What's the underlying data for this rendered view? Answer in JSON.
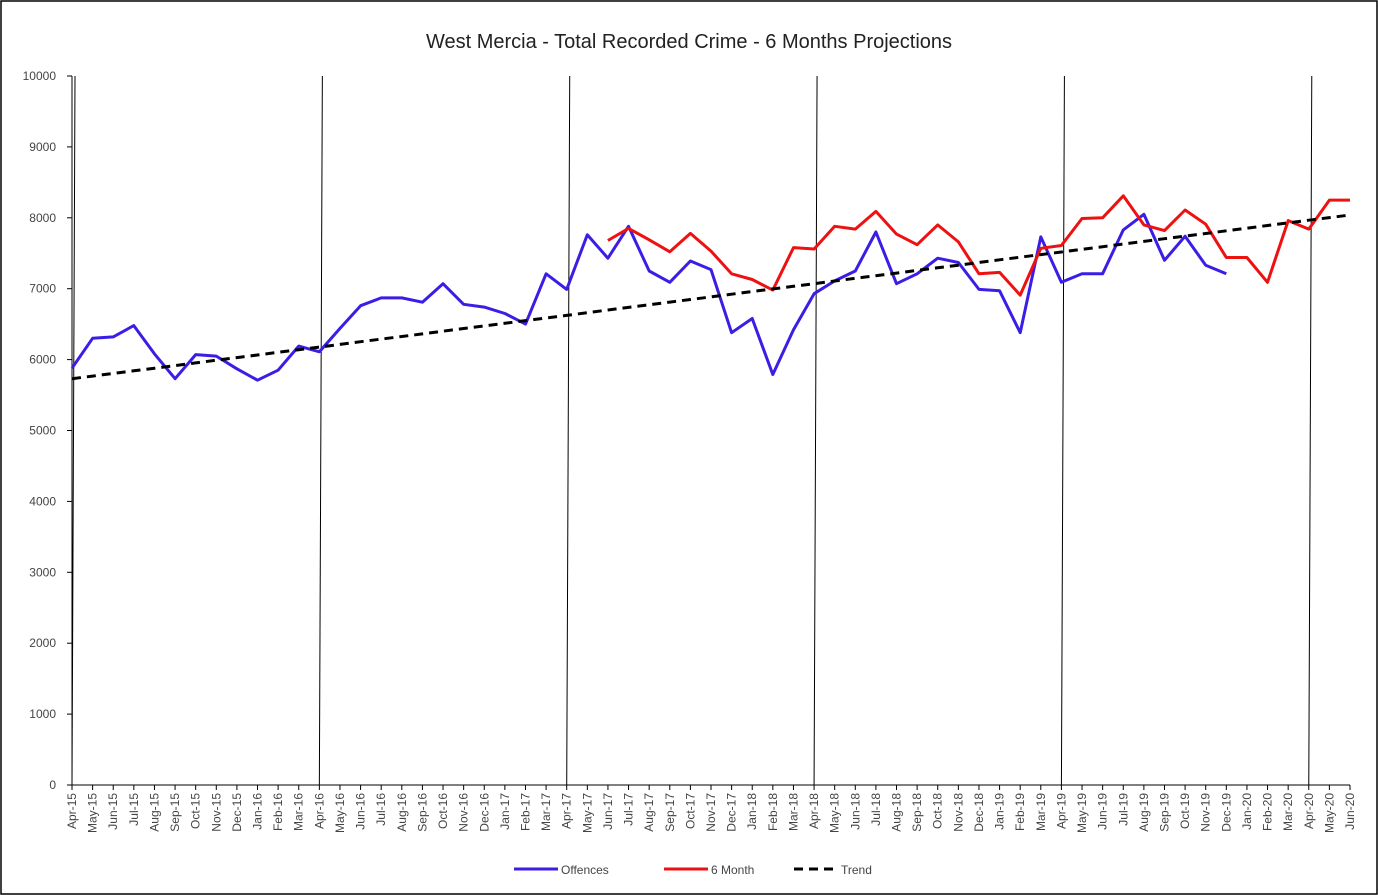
{
  "chart_data": {
    "type": "line",
    "title": "West Mercia - Total Recorded Crime - 6 Months Projections",
    "categories": [
      "Apr-15",
      "May-15",
      "Jun-15",
      "Jul-15",
      "Aug-15",
      "Sep-15",
      "Oct-15",
      "Nov-15",
      "Dec-15",
      "Jan-16",
      "Feb-16",
      "Mar-16",
      "Apr-16",
      "May-16",
      "Jun-16",
      "Jul-16",
      "Aug-16",
      "Sep-16",
      "Oct-16",
      "Nov-16",
      "Dec-16",
      "Jan-17",
      "Feb-17",
      "Mar-17",
      "Apr-17",
      "May-17",
      "Jun-17",
      "Jul-17",
      "Aug-17",
      "Sep-17",
      "Oct-17",
      "Nov-17",
      "Dec-17",
      "Jan-18",
      "Feb-18",
      "Mar-18",
      "Apr-18",
      "May-18",
      "Jun-18",
      "Jul-18",
      "Aug-18",
      "Sep-18",
      "Oct-18",
      "Nov-18",
      "Dec-18",
      "Jan-19",
      "Feb-19",
      "Mar-19",
      "Apr-19",
      "May-19",
      "Jun-19",
      "Jul-19",
      "Aug-19",
      "Sep-19",
      "Oct-19",
      "Nov-19",
      "Dec-19",
      "Jan-20",
      "Feb-20",
      "Mar-20",
      "Apr-20",
      "May-20",
      "Jun-20"
    ],
    "series": [
      {
        "name": "Offences",
        "color": "#3a1ee6",
        "dashed": false,
        "values": [
          5880,
          6300,
          6320,
          6480,
          6080,
          5730,
          6070,
          6050,
          5870,
          5710,
          5850,
          6190,
          6110,
          6440,
          6760,
          6870,
          6870,
          6810,
          7070,
          6780,
          6740,
          6650,
          6500,
          7210,
          6990,
          7760,
          7430,
          7880,
          7250,
          7090,
          7390,
          7270,
          6380,
          6580,
          5790,
          6420,
          6930,
          7110,
          7250,
          7800,
          7070,
          7210,
          7430,
          7370,
          6990,
          6970,
          6380,
          7730,
          7090,
          7210,
          7210,
          7830,
          8050,
          7400,
          7740,
          7330,
          7210,
          null,
          null,
          null,
          null,
          null,
          null
        ]
      },
      {
        "name": "6 Month",
        "color": "#ee1111",
        "dashed": false,
        "values": [
          null,
          null,
          null,
          null,
          null,
          null,
          null,
          null,
          null,
          null,
          null,
          null,
          null,
          null,
          null,
          null,
          null,
          null,
          null,
          null,
          null,
          null,
          null,
          null,
          null,
          null,
          7680,
          7850,
          7690,
          7520,
          7780,
          7530,
          7210,
          7130,
          6980,
          7580,
          7560,
          7880,
          7840,
          8090,
          7770,
          7620,
          7900,
          7660,
          7210,
          7230,
          6910,
          7570,
          7610,
          7990,
          8000,
          8310,
          7900,
          7820,
          8110,
          7910,
          7440,
          7440,
          7090,
          7960,
          7840,
          8250,
          8250
        ]
      },
      {
        "name": "Trend",
        "color": "#000000",
        "dashed": true,
        "values": [
          5730,
          5767,
          5805,
          5842,
          5879,
          5916,
          5954,
          5991,
          6028,
          6065,
          6103,
          6140,
          6177,
          6214,
          6252,
          6289,
          6326,
          6363,
          6401,
          6438,
          6475,
          6512,
          6550,
          6587,
          6624,
          6662,
          6699,
          6736,
          6773,
          6811,
          6848,
          6885,
          6922,
          6960,
          6997,
          7034,
          7071,
          7109,
          7146,
          7183,
          7220,
          7258,
          7295,
          7332,
          7369,
          7407,
          7444,
          7481,
          7518,
          7556,
          7593,
          7630,
          7667,
          7705,
          7742,
          7779,
          7816,
          7854,
          7891,
          7928,
          7966,
          8003,
          8040
        ]
      }
    ],
    "ylim": [
      0,
      10000
    ],
    "yticks": [
      0,
      1000,
      2000,
      3000,
      4000,
      5000,
      6000,
      7000,
      8000,
      9000,
      10000
    ],
    "grid": false,
    "legend": "bottom"
  }
}
